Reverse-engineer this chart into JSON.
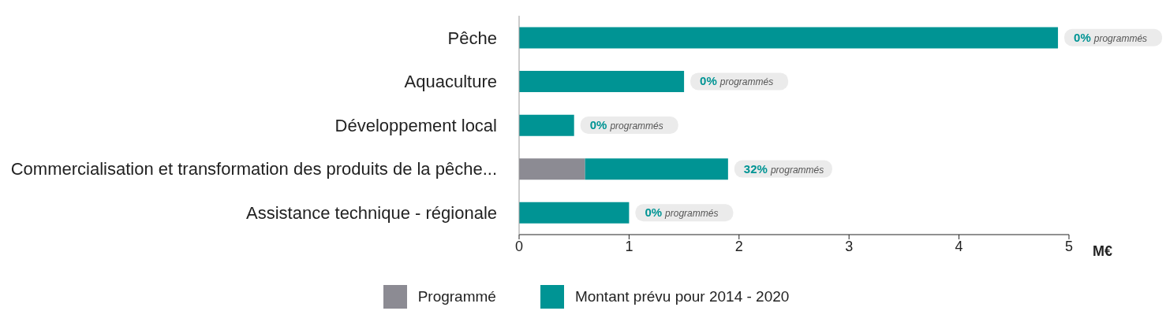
{
  "chart_data": {
    "type": "bar",
    "orientation": "horizontal",
    "stacked": true,
    "categories": [
      "Pêche",
      "Aquaculture",
      "Développement local",
      "Commercialisation et transformation des produits de la pêche...",
      "Assistance technique - régionale"
    ],
    "series": [
      {
        "name": "Programmé",
        "color": "#8c8b93",
        "values": [
          0,
          0,
          0,
          0.6,
          0
        ]
      },
      {
        "name": "Montant prévu pour 2014 - 2020",
        "color": "#009494",
        "values": [
          4.9,
          1.5,
          0.5,
          1.3,
          1.0
        ]
      }
    ],
    "annotations": [
      {
        "text": "0% programmés",
        "x": 4.9,
        "y": "Pêche"
      },
      {
        "text": "0% programmés",
        "x": 1.5,
        "y": "Aquaculture"
      },
      {
        "text": "0% programmés",
        "x": 0.5,
        "y": "Développement local"
      },
      {
        "text": "32% programmés",
        "x": 1.9,
        "y": "Commercialisation et transformation des produits de la pêche..."
      },
      {
        "text": "0% programmés",
        "x": 1.0,
        "y": "Assistance technique - régionale"
      }
    ],
    "xlim": [
      0,
      5
    ],
    "xticks": [
      0,
      1,
      2,
      3,
      4,
      5
    ],
    "xlabel": "M€",
    "legend": "bottom"
  }
}
